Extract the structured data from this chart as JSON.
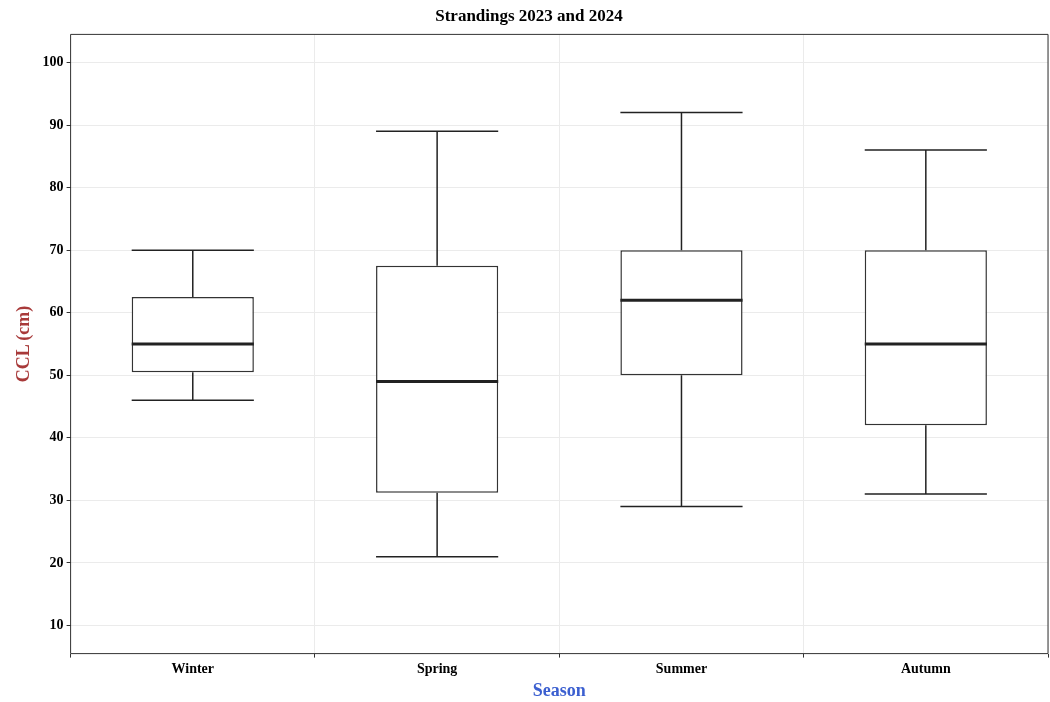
{
  "chart_data": {
    "type": "box",
    "title": "Strandings 2023 and 2024",
    "xlabel": "Season",
    "ylabel": "CCL (cm)",
    "categories": [
      "Winter",
      "Spring",
      "Summer",
      "Autumn"
    ],
    "boxes": [
      {
        "low": 46,
        "q1": 50.5,
        "median": 55,
        "q3": 62.5,
        "high": 70
      },
      {
        "low": 21,
        "q1": 31.2,
        "median": 49,
        "q3": 67.5,
        "high": 89
      },
      {
        "low": 29,
        "q1": 50,
        "median": 62,
        "q3": 70,
        "high": 92
      },
      {
        "low": 31,
        "q1": 42,
        "median": 55,
        "q3": 70,
        "high": 86
      }
    ],
    "ylim": [
      5.5,
      104.5
    ],
    "yticks": [
      10,
      20,
      30,
      40,
      50,
      60,
      70,
      80,
      90,
      100
    ],
    "grid": true,
    "legend": false
  }
}
